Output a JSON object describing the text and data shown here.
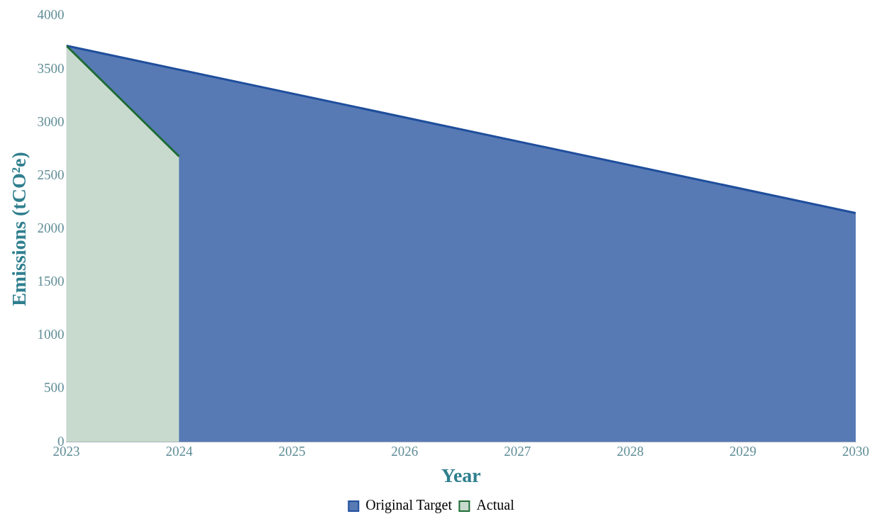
{
  "chart_data": {
    "type": "area",
    "xlabel": "Year",
    "ylabel": "Emissions (tCO²e)",
    "series": [
      {
        "name": "Original Target",
        "color": "#1f4e9c",
        "x": [
          2023,
          2030
        ],
        "values": [
          3720,
          2150
        ]
      },
      {
        "name": "Actual",
        "color": "#1e6b35",
        "x": [
          2023,
          2024
        ],
        "values": [
          3720,
          2680
        ]
      }
    ],
    "xlim": [
      2023,
      2030
    ],
    "xticks": [
      2023,
      2024,
      2025,
      2026,
      2027,
      2028,
      2029,
      2030
    ],
    "ylim": [
      0,
      4000
    ],
    "yticks": [
      0,
      500,
      1000,
      1500,
      2000,
      2500,
      3000,
      3500,
      4000
    ],
    "grid": false,
    "legend": "bottom",
    "marker": "none",
    "line_style": "solid"
  }
}
